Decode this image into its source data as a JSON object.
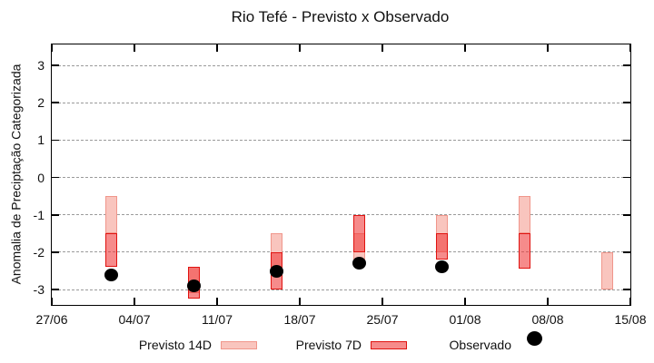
{
  "chart_data": {
    "type": "candlestick",
    "title": "Rio Tefé - Previsto x Observado",
    "ylabel": "Anomalia de Preciptação Categorizada",
    "xlabel": "",
    "grid": "horizontal-dashed",
    "legend_position": "bottom-center",
    "ylim": [
      -3.41,
      3.56
    ],
    "x_span_days": 49,
    "y_ticks": [
      3,
      2,
      1,
      0,
      -1,
      -2,
      -3
    ],
    "x_ticks": [
      {
        "day": 0,
        "label": "27/06"
      },
      {
        "day": 7,
        "label": "04/07"
      },
      {
        "day": 14,
        "label": "11/07"
      },
      {
        "day": 21,
        "label": "18/07"
      },
      {
        "day": 28,
        "label": "25/07"
      },
      {
        "day": 35,
        "label": "01/08"
      },
      {
        "day": 42,
        "label": "08/08"
      },
      {
        "day": 49,
        "label": "15/08"
      }
    ],
    "series": [
      {
        "name": "Previsto 14D",
        "fill": "#f9c5be",
        "border": "#f0968b"
      },
      {
        "name": "Previsto 7D",
        "fill": "rgba(240,55,55,0.58)",
        "border": "#e01310"
      },
      {
        "name": "Observado",
        "color": "#000000"
      }
    ],
    "groups": [
      {
        "date": "02/07",
        "day": 5,
        "previsto_14d": [
          -0.5,
          -1.5
        ],
        "previsto_7d": [
          -1.5,
          -2.4
        ],
        "observado": -2.6
      },
      {
        "date": "09/07",
        "day": 12,
        "previsto_14d": [
          -2.4,
          -3.1
        ],
        "previsto_7d": [
          -2.4,
          -3.25
        ],
        "observado": -2.9
      },
      {
        "date": "16/07",
        "day": 19,
        "previsto_14d": [
          -1.5,
          -2.6
        ],
        "previsto_7d": [
          -2.0,
          -3.0
        ],
        "observado": -2.5
      },
      {
        "date": "23/07",
        "day": 26,
        "previsto_14d": [
          -1.5,
          -2.2
        ],
        "previsto_7d": [
          -1.0,
          -2.0
        ],
        "observado": -2.3
      },
      {
        "date": "30/07",
        "day": 33,
        "previsto_14d": [
          -1.0,
          -2.0
        ],
        "previsto_7d": [
          -1.5,
          -2.2
        ],
        "observado": -2.4
      },
      {
        "date": "06/08",
        "day": 40,
        "previsto_14d": [
          -0.5,
          -1.5
        ],
        "previsto_7d": [
          -1.5,
          -2.45
        ],
        "observado": null
      },
      {
        "date": "13/08",
        "day": 47,
        "previsto_14d": [
          -2.0,
          -3.0
        ],
        "previsto_7d": null,
        "observado": null
      }
    ]
  },
  "legend": {
    "item_14d": "Previsto 14D",
    "item_7d": "Previsto 7D",
    "item_obs": "Observado"
  }
}
